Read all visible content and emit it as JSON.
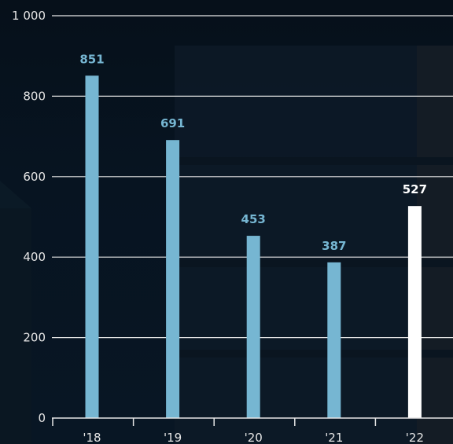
{
  "chart_data": {
    "type": "bar",
    "title": "",
    "xlabel": "",
    "ylabel": "",
    "categories": [
      "'18",
      "'19",
      "'20",
      "'21",
      "'22"
    ],
    "values": [
      851,
      691,
      453,
      387,
      527
    ],
    "value_labels": [
      "851",
      "691",
      "453",
      "387",
      "527"
    ],
    "ylim": [
      0,
      1000
    ],
    "y_ticks": [
      0,
      200,
      400,
      600,
      800,
      1000
    ],
    "y_tick_labels": [
      "0",
      "200",
      "400",
      "600",
      "800",
      "1 000"
    ],
    "grid": true,
    "colors": {
      "bar": "#76b6d2",
      "highlight_bar": "#ffffff",
      "bar_label": "#76b6d2",
      "highlight_label": "#ffffff",
      "gridline": "#e6e6e6",
      "axis_text": "#e6e6e6"
    },
    "highlight_index": 4
  }
}
